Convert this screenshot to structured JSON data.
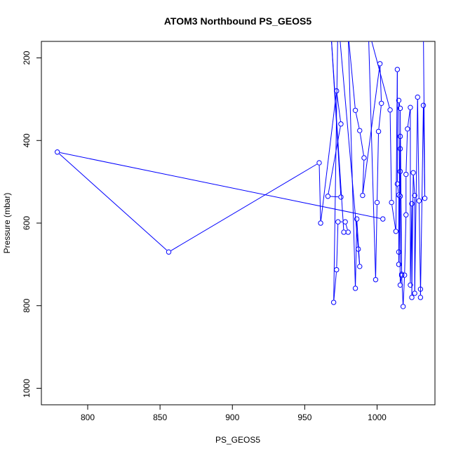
{
  "chart_data": {
    "type": "line",
    "title": "ATOM3 Northbound PS_GEOS5",
    "xlabel": "PS_GEOS5",
    "ylabel": "Pressure (mbar)",
    "xlim": [
      768,
      1040
    ],
    "ylim": [
      1040,
      160
    ],
    "y_inverted": true,
    "x_ticks": [
      800,
      850,
      900,
      950,
      1000
    ],
    "y_ticks": [
      200,
      400,
      600,
      800,
      1000
    ],
    "grid": false,
    "series": [
      {
        "color": "#0000ff",
        "marker": "open-circle",
        "points": [
          [
            1004,
            590
          ],
          [
            779,
            428
          ],
          [
            856,
            670
          ],
          [
            960,
            454
          ],
          [
            961,
            600
          ],
          [
            972,
            280
          ],
          [
            975,
            360
          ],
          [
            966,
            535
          ],
          [
            975,
            537
          ],
          [
            968,
            130
          ],
          [
            977,
            622
          ],
          [
            980,
            622
          ],
          [
            978,
            597
          ],
          [
            973,
            597
          ],
          [
            972,
            713
          ],
          [
            970,
            792
          ],
          [
            973,
            100
          ],
          [
            987,
            663
          ],
          [
            988,
            705
          ],
          [
            986,
            590
          ],
          [
            985,
            758
          ],
          [
            980,
            140
          ],
          [
            985,
            327
          ],
          [
            988,
            376
          ],
          [
            991,
            442
          ],
          [
            990,
            533
          ],
          [
            1002,
            214
          ],
          [
            1003,
            310
          ],
          [
            1001,
            378
          ],
          [
            1000,
            550
          ],
          [
            999,
            737
          ],
          [
            994,
            130
          ],
          [
            1009,
            326
          ],
          [
            1010,
            550
          ],
          [
            1013,
            620
          ],
          [
            1014,
            228
          ],
          [
            1014,
            505
          ],
          [
            1015,
            532
          ],
          [
            1015,
            670
          ],
          [
            1015,
            700
          ],
          [
            1016,
            390
          ],
          [
            1016,
            420
          ],
          [
            1016,
            475
          ],
          [
            1016,
            535
          ],
          [
            1017,
            724
          ],
          [
            1016,
            750
          ],
          [
            1015,
            303
          ],
          [
            1016,
            322
          ],
          [
            1017,
            727
          ],
          [
            1018,
            802
          ],
          [
            1019,
            726
          ],
          [
            1020,
            580
          ],
          [
            1020,
            482
          ],
          [
            1021,
            372
          ],
          [
            1023,
            320
          ],
          [
            1023,
            750
          ],
          [
            1024,
            553
          ],
          [
            1024,
            780
          ],
          [
            1025,
            478
          ],
          [
            1026,
            533
          ],
          [
            1026,
            770
          ],
          [
            1028,
            295
          ],
          [
            1029,
            546
          ],
          [
            1030,
            760
          ],
          [
            1030,
            780
          ],
          [
            1032,
            315
          ],
          [
            1033,
            540
          ],
          [
            1032,
            130
          ],
          [
            1026,
            140
          ],
          [
            1021,
            145
          ],
          [
            1019,
            150
          ]
        ]
      }
    ]
  }
}
